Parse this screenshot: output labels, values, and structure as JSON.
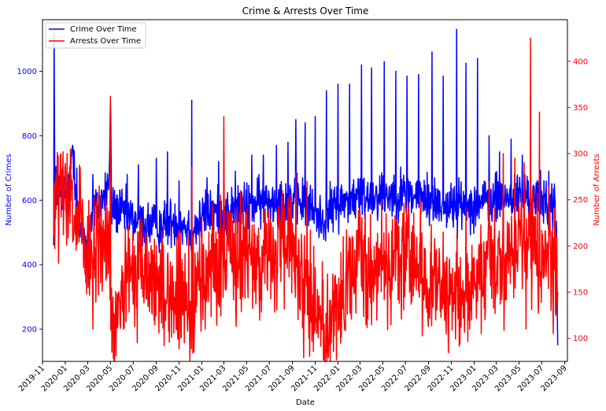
{
  "chart_data": {
    "type": "line",
    "title": "Crime & Arrests Over Time",
    "xlabel": "Date",
    "ylabel_left": "Number of Crimes",
    "ylabel_right": "Number of Arrests",
    "x_range": [
      "2019-11-01",
      "2023-09-08"
    ],
    "x_data_range": [
      "2019-12-01",
      "2023-08-13"
    ],
    "x_ticks": [
      "2019-11",
      "2020-01",
      "2020-03",
      "2020-05",
      "2020-07",
      "2020-09",
      "2020-11",
      "2021-01",
      "2021-03",
      "2021-05",
      "2021-07",
      "2021-09",
      "2021-11",
      "2022-01",
      "2022-03",
      "2022-05",
      "2022-07",
      "2022-09",
      "2022-11",
      "2023-01",
      "2023-03",
      "2023-05",
      "2023-07",
      "2023-09"
    ],
    "y_left_range": [
      100,
      1160
    ],
    "y_left_ticks": [
      200,
      400,
      600,
      800,
      1000
    ],
    "y_right_range": [
      75,
      445
    ],
    "y_right_ticks": [
      100,
      150,
      200,
      250,
      300,
      350,
      400
    ],
    "grid": false,
    "legend_position": "top-left",
    "colors": {
      "crime": "#0000ff",
      "arrests": "#ff0000",
      "right_axis": "#ff0000",
      "left_axis": "#0000ff"
    },
    "series": [
      {
        "name": "Crime Over Time",
        "axis": "left",
        "color": "#0000ff",
        "keypoints": [
          [
            "2019-12-01",
            530
          ],
          [
            "2019-12-02",
            1110
          ],
          [
            "2019-12-04",
            640
          ],
          [
            "2019-12-20",
            640
          ],
          [
            "2020-01-10",
            600
          ],
          [
            "2020-01-20",
            780
          ],
          [
            "2020-02-10",
            500
          ],
          [
            "2020-03-01",
            480
          ],
          [
            "2020-03-15",
            560
          ],
          [
            "2020-04-10",
            600
          ],
          [
            "2020-04-28",
            660
          ],
          [
            "2020-05-01",
            910
          ],
          [
            "2020-05-04",
            580
          ],
          [
            "2020-06-01",
            560
          ],
          [
            "2020-07-01",
            540
          ],
          [
            "2020-07-20",
            530
          ],
          [
            "2020-08-20",
            520
          ],
          [
            "2020-09-20",
            520
          ],
          [
            "2020-10-20",
            540
          ],
          [
            "2020-11-20",
            520
          ],
          [
            "2020-12-05",
            500
          ],
          [
            "2021-01-15",
            560
          ],
          [
            "2021-03-01",
            560
          ],
          [
            "2021-05-01",
            580
          ],
          [
            "2021-07-01",
            600
          ],
          [
            "2021-09-01",
            600
          ],
          [
            "2021-10-01",
            590
          ],
          [
            "2021-11-20",
            540
          ],
          [
            "2022-01-01",
            590
          ],
          [
            "2022-03-01",
            610
          ],
          [
            "2022-05-01",
            620
          ],
          [
            "2022-07-01",
            620
          ],
          [
            "2022-09-01",
            600
          ],
          [
            "2022-11-01",
            580
          ],
          [
            "2023-01-01",
            590
          ],
          [
            "2023-03-01",
            600
          ],
          [
            "2023-05-01",
            610
          ],
          [
            "2023-07-01",
            600
          ],
          [
            "2023-08-05",
            580
          ],
          [
            "2023-08-10",
            480
          ],
          [
            "2023-08-13",
            150
          ]
        ],
        "spikes": [
          [
            "2020-02-01",
            700
          ],
          [
            "2020-03-15",
            680
          ],
          [
            "2020-05-01",
            910
          ],
          [
            "2020-06-15",
            680
          ],
          [
            "2020-07-15",
            710
          ],
          [
            "2020-09-01",
            730
          ],
          [
            "2020-10-01",
            750
          ],
          [
            "2020-11-01",
            660
          ],
          [
            "2020-12-05",
            910
          ],
          [
            "2021-01-15",
            670
          ],
          [
            "2021-02-15",
            720
          ],
          [
            "2021-04-01",
            690
          ],
          [
            "2021-05-15",
            740
          ],
          [
            "2021-06-15",
            740
          ],
          [
            "2021-07-20",
            770
          ],
          [
            "2021-08-20",
            780
          ],
          [
            "2021-09-10",
            850
          ],
          [
            "2021-10-05",
            840
          ],
          [
            "2021-11-01",
            860
          ],
          [
            "2021-12-01",
            940
          ],
          [
            "2022-01-01",
            960
          ],
          [
            "2022-02-01",
            960
          ],
          [
            "2022-03-05",
            1020
          ],
          [
            "2022-04-01",
            1010
          ],
          [
            "2022-05-05",
            1030
          ],
          [
            "2022-06-05",
            1000
          ],
          [
            "2022-07-05",
            985
          ],
          [
            "2022-08-05",
            990
          ],
          [
            "2022-09-10",
            1060
          ],
          [
            "2022-10-10",
            985
          ],
          [
            "2022-11-15",
            1130
          ],
          [
            "2022-12-10",
            1025
          ],
          [
            "2023-01-10",
            1040
          ],
          [
            "2023-02-10",
            800
          ],
          [
            "2023-03-10",
            750
          ],
          [
            "2023-04-10",
            790
          ],
          [
            "2023-05-10",
            740
          ],
          [
            "2023-06-01",
            780
          ],
          [
            "2023-06-25",
            700
          ],
          [
            "2023-07-20",
            690
          ]
        ]
      },
      {
        "name": "Arrests Over Time",
        "axis": "right",
        "color": "#ff0000",
        "keypoints": [
          [
            "2019-12-01",
            230
          ],
          [
            "2019-12-05",
            250
          ],
          [
            "2020-01-01",
            250
          ],
          [
            "2020-01-20",
            230
          ],
          [
            "2020-02-10",
            220
          ],
          [
            "2020-03-01",
            175
          ],
          [
            "2020-04-01",
            200
          ],
          [
            "2020-04-25",
            210
          ],
          [
            "2020-05-01",
            180
          ],
          [
            "2020-05-05",
            90
          ],
          [
            "2020-06-01",
            150
          ],
          [
            "2020-07-01",
            170
          ],
          [
            "2020-08-01",
            165
          ],
          [
            "2020-09-01",
            160
          ],
          [
            "2020-10-01",
            150
          ],
          [
            "2020-11-01",
            140
          ],
          [
            "2020-12-01",
            135
          ],
          [
            "2021-01-01",
            165
          ],
          [
            "2021-02-01",
            185
          ],
          [
            "2021-03-01",
            185
          ],
          [
            "2021-05-01",
            190
          ],
          [
            "2021-07-01",
            185
          ],
          [
            "2021-09-01",
            200
          ],
          [
            "2021-10-01",
            160
          ],
          [
            "2021-11-01",
            135
          ],
          [
            "2021-12-01",
            110
          ],
          [
            "2022-01-01",
            135
          ],
          [
            "2022-02-01",
            160
          ],
          [
            "2022-03-01",
            180
          ],
          [
            "2022-05-01",
            180
          ],
          [
            "2022-07-01",
            185
          ],
          [
            "2022-09-01",
            165
          ],
          [
            "2022-11-01",
            145
          ],
          [
            "2023-01-01",
            150
          ],
          [
            "2023-03-01",
            180
          ],
          [
            "2023-05-01",
            210
          ],
          [
            "2023-07-01",
            195
          ],
          [
            "2023-08-05",
            185
          ],
          [
            "2023-08-13",
            150
          ]
        ],
        "spikes": [
          [
            "2019-12-05",
            270
          ],
          [
            "2019-12-20",
            300
          ],
          [
            "2020-01-15",
            305
          ],
          [
            "2020-02-10",
            285
          ],
          [
            "2020-04-01",
            265
          ],
          [
            "2020-05-01",
            362
          ],
          [
            "2020-06-10",
            220
          ],
          [
            "2020-07-20",
            230
          ],
          [
            "2020-09-20",
            200
          ],
          [
            "2020-12-05",
            285
          ],
          [
            "2021-01-20",
            215
          ],
          [
            "2021-02-20",
            255
          ],
          [
            "2021-03-01",
            340
          ],
          [
            "2021-04-15",
            260
          ],
          [
            "2021-06-20",
            240
          ],
          [
            "2021-07-25",
            235
          ],
          [
            "2021-08-25",
            255
          ],
          [
            "2021-09-10",
            280
          ],
          [
            "2021-10-10",
            270
          ],
          [
            "2022-01-15",
            210
          ],
          [
            "2022-03-15",
            235
          ],
          [
            "2022-05-10",
            235
          ],
          [
            "2022-07-10",
            245
          ],
          [
            "2022-08-10",
            250
          ],
          [
            "2022-10-10",
            215
          ],
          [
            "2022-12-10",
            240
          ],
          [
            "2023-02-10",
            270
          ],
          [
            "2023-03-20",
            300
          ],
          [
            "2023-04-20",
            295
          ],
          [
            "2023-05-15",
            290
          ],
          [
            "2023-06-01",
            425
          ],
          [
            "2023-06-25",
            345
          ],
          [
            "2023-07-20",
            265
          ]
        ],
        "dips": [
          [
            "2020-03-15",
            110
          ],
          [
            "2020-05-05",
            85
          ],
          [
            "2020-06-05",
            110
          ],
          [
            "2020-11-15",
            95
          ],
          [
            "2021-01-10",
            110
          ],
          [
            "2021-10-15",
            100
          ],
          [
            "2021-12-05",
            90
          ],
          [
            "2022-01-20",
            110
          ],
          [
            "2022-09-20",
            120
          ],
          [
            "2022-12-20",
            110
          ],
          [
            "2023-01-20",
            105
          ],
          [
            "2023-05-20",
            110
          ],
          [
            "2023-08-01",
            105
          ]
        ]
      }
    ]
  }
}
